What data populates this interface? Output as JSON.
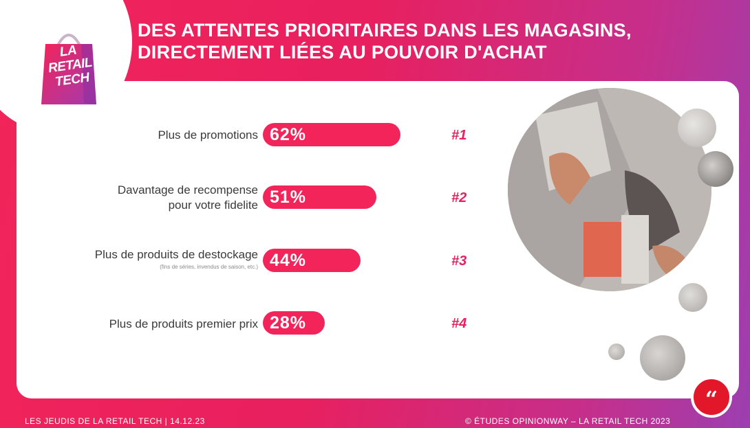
{
  "logo": {
    "line1": "LA",
    "line2": "RETAIL",
    "line3": "TECH"
  },
  "title": {
    "line1": "DES ATTENTES PRIORITAIRES DANS LES MAGASINS,",
    "line2": "DIRECTEMENT LIÉES AU POUVOIR D'ACHAT"
  },
  "chart_data": {
    "type": "bar",
    "orientation": "horizontal",
    "categories": [
      "Plus de promotions",
      "Davantage de recompense pour votre fidelite",
      "Plus de produits de destockage",
      "Plus de produits premier prix"
    ],
    "values": [
      62,
      51,
      44,
      28
    ],
    "value_labels": [
      "62%",
      "51%",
      "44%",
      "28%"
    ],
    "ranks": [
      "#1",
      "#2",
      "#3",
      "#4"
    ],
    "label_lines": [
      [
        "Plus de promotions"
      ],
      [
        "Davantage de recompense",
        "pour votre fidelite"
      ],
      [
        "Plus de produits de destockage"
      ],
      [
        "Plus de produits premier prix"
      ]
    ],
    "sublabel": "(fins de séries, invendus de saison, etc.)",
    "xlim": [
      0,
      100
    ],
    "bar_color": "#f2245a"
  },
  "footer": {
    "left": "LES JEUDIS DE LA RETAIL TECH | 14.12.23",
    "right": "© ÉTUDES OPINIONWAY – LA RETAIL TECH 2023"
  },
  "quote_icon": "“"
}
